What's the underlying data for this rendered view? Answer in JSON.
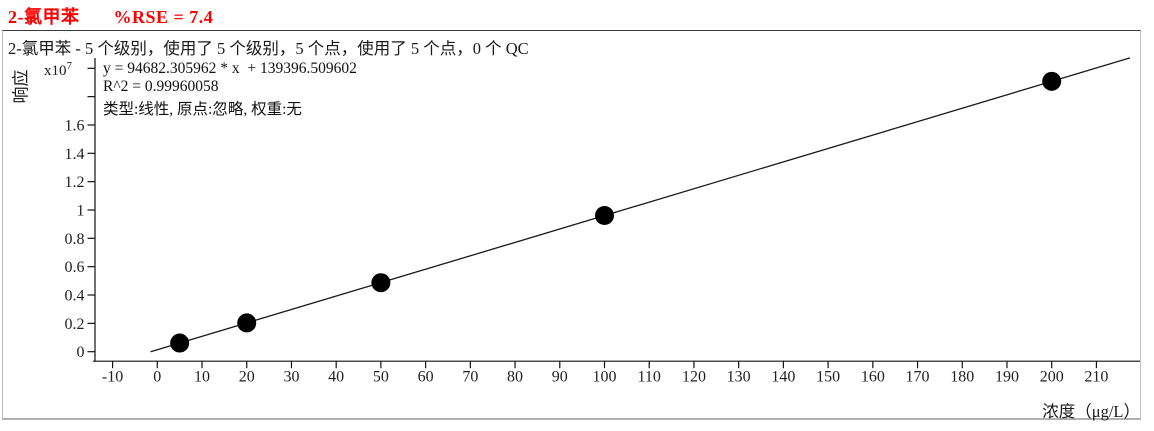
{
  "header": {
    "compound": "2-氯甲苯",
    "rse": "%RSE = 7.4"
  },
  "panel": {
    "subtitle": "2-氯甲苯 - 5 个级别，使用了 5 个级别，5 个点，使用了 5 个点，0 个 QC"
  },
  "chart_data": {
    "type": "scatter",
    "title": "2-氯甲苯 %RSE = 7.4",
    "xlabel": "浓度（μg/L）",
    "ylabel": "响应",
    "y_scale_label": "x10",
    "y_scale_exponent": "7",
    "x_ticks": [
      -10,
      0,
      10,
      20,
      30,
      40,
      50,
      60,
      70,
      80,
      90,
      100,
      110,
      120,
      130,
      140,
      150,
      160,
      170,
      180,
      190,
      200,
      210
    ],
    "y_ticks": [
      0,
      0.2,
      0.4,
      0.6,
      0.8,
      1,
      1.2,
      1.4,
      1.6
    ],
    "y_unlabeled_ticks": [
      1.8,
      2.0
    ],
    "xlim": [
      -14.5,
      220
    ],
    "ylim_x10_7": [
      -0.07,
      2.07
    ],
    "grid": false,
    "legend": "none",
    "points": {
      "concentrations_ug_L": [
        5,
        20,
        50,
        100,
        200
      ],
      "responses_x10_7": [
        0.061,
        0.203,
        0.487,
        0.961,
        1.908
      ]
    },
    "fit": {
      "equation_text": "y = 94682.305962 * x  + 139396.509602",
      "r2_text": "R^2 = 0.99960058",
      "model_text": "类型:线性, 原点:忽略, 权重:无",
      "slope": 94682.305962,
      "intercept": 139396.509602,
      "r_squared": 0.99960058,
      "line_x_range": [
        -1.5,
        217.5
      ]
    },
    "colors": {
      "ink": "#111111",
      "point": "#000000",
      "line": "#1a1a1a",
      "title": "#ff0000"
    }
  }
}
